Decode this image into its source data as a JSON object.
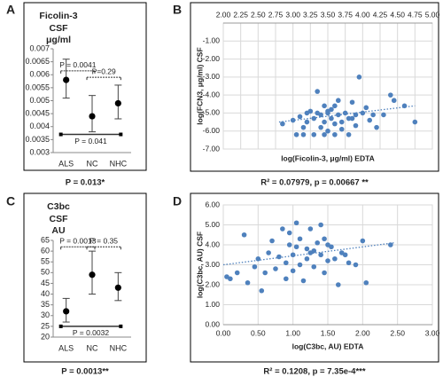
{
  "chart_data": [
    {
      "type": "errorbar",
      "panel_label": "A",
      "title_lines": [
        "Ficolin-3",
        "CSF",
        "μg/ml"
      ],
      "categories": [
        "ALS",
        "NC",
        "NHC"
      ],
      "values": [
        0.0058,
        0.0044,
        0.0049
      ],
      "low": [
        0.0051,
        0.0038,
        0.0043
      ],
      "high": [
        0.0066,
        0.0052,
        0.0056
      ],
      "color": "#000000",
      "ylim": [
        0.003,
        0.007
      ],
      "yticks": [
        0.003,
        0.0035,
        0.004,
        0.0045,
        0.005,
        0.0055,
        0.006,
        0.0065,
        0.007
      ],
      "annotations": [
        {
          "text": "P = 0.0041",
          "x": [
            0,
            1
          ],
          "y": 0.00615
        },
        {
          "text": "P=0.29",
          "x": [
            1,
            2
          ],
          "y": 0.0059
        },
        {
          "text": "P = 0.041",
          "x": [
            0,
            2
          ],
          "y": 0.0037
        }
      ],
      "caption": "P = 0.013*"
    },
    {
      "type": "scatter",
      "panel_label": "B",
      "xlabel": "log(Ficolin-3, μg/ml) EDTA",
      "ylabel": "log(FCN3, μg/ml) CSF",
      "color": "#4f81bd",
      "grid": true,
      "x_axis_position": "top",
      "x": [
        2.85,
        3.0,
        3.05,
        3.1,
        3.15,
        3.2,
        3.2,
        3.25,
        3.3,
        3.3,
        3.35,
        3.4,
        3.4,
        3.45,
        3.45,
        3.5,
        3.5,
        3.55,
        3.55,
        3.6,
        3.6,
        3.65,
        3.65,
        3.7,
        3.7,
        3.75,
        3.8,
        3.8,
        3.85,
        3.9,
        3.9,
        3.95,
        4.0,
        4.05,
        4.1,
        4.15,
        4.2,
        4.3,
        4.4,
        4.45,
        4.6,
        4.75,
        3.35,
        3.5,
        3.85,
        3.15,
        3.6,
        3.45
      ],
      "y": [
        -5.6,
        -5.4,
        -6.2,
        -5.2,
        -6.2,
        -5.0,
        -5.5,
        -4.9,
        -5.3,
        -6.2,
        -3.8,
        -5.1,
        -5.8,
        -4.6,
        -5.5,
        -5.0,
        -6.0,
        -4.8,
        -5.3,
        -5.6,
        -6.2,
        -4.3,
        -5.1,
        -5.5,
        -5.9,
        -5.0,
        -5.3,
        -6.2,
        -4.4,
        -5.1,
        -5.7,
        -3.0,
        -5.0,
        -4.7,
        -5.4,
        -5.1,
        -5.8,
        -5.1,
        -4.0,
        -4.3,
        -4.6,
        -5.5,
        -5.0,
        -4.9,
        -5.3,
        -5.8,
        -4.6,
        -6.2
      ],
      "trendline": {
        "x": [
          2.8,
          4.75
        ],
        "y": [
          -5.5,
          -4.6
        ]
      },
      "xlim": [
        2,
        5
      ],
      "xticks": [
        {
          "value": 2,
          "label": "2.00"
        },
        {
          "value": 2.25,
          "label": "2.25"
        },
        {
          "value": 2.5,
          "label": "2.50"
        },
        {
          "value": 2.75,
          "label": "2.75"
        },
        {
          "value": 3,
          "label": "3.00"
        },
        {
          "value": 3.25,
          "label": "3.25"
        },
        {
          "value": 3.5,
          "label": "3.50"
        },
        {
          "value": 3.75,
          "label": "3.75"
        },
        {
          "value": 4,
          "label": "4.00"
        },
        {
          "value": 4.25,
          "label": "4.25"
        },
        {
          "value": 4.5,
          "label": "4.50"
        },
        {
          "value": 4.75,
          "label": "4.75"
        },
        {
          "value": 5,
          "label": "5.00"
        }
      ],
      "ylim": [
        -7,
        0
      ],
      "yticks": [
        {
          "value": -1,
          "label": "-1.00"
        },
        {
          "value": -2,
          "label": "-2.00"
        },
        {
          "value": -3,
          "label": "-3.00"
        },
        {
          "value": -4,
          "label": "-4.00"
        },
        {
          "value": -5,
          "label": "-5.00"
        },
        {
          "value": -6,
          "label": "-6.00"
        },
        {
          "value": -7,
          "label": "-7.00"
        }
      ],
      "caption": "R² = 0.07979, p = 0.00667 **"
    },
    {
      "type": "errorbar",
      "panel_label": "C",
      "title_lines": [
        "C3bc",
        "CSF",
        "AU"
      ],
      "categories": [
        "ALS",
        "NC",
        "NHC"
      ],
      "values": [
        32,
        49,
        43
      ],
      "low": [
        27,
        40,
        37
      ],
      "high": [
        38,
        60,
        50
      ],
      "color": "#000000",
      "ylim": [
        20,
        65
      ],
      "yticks": [
        20,
        25,
        30,
        35,
        40,
        45,
        50,
        55,
        60,
        65
      ],
      "annotations": [
        {
          "text": "P = 0.0013",
          "x": [
            0,
            1
          ],
          "y": 62
        },
        {
          "text": "P = 0.35",
          "x": [
            1,
            2
          ],
          "y": 62
        },
        {
          "text": "P = 0.0032",
          "x": [
            0,
            2
          ],
          "y": 25
        }
      ],
      "caption": "P = 0.0013**"
    },
    {
      "type": "scatter",
      "panel_label": "D",
      "xlabel": "log(C3bc, AU) EDTA",
      "ylabel": "log(C3bc, AU) CSF",
      "color": "#4f81bd",
      "grid": true,
      "x_axis_position": "bottom",
      "x": [
        0.05,
        0.1,
        0.2,
        0.3,
        0.35,
        0.45,
        0.5,
        0.55,
        0.6,
        0.65,
        0.7,
        0.75,
        0.8,
        0.85,
        0.9,
        0.9,
        0.95,
        1.0,
        1.0,
        1.05,
        1.1,
        1.1,
        1.15,
        1.2,
        1.2,
        1.25,
        1.3,
        1.3,
        1.35,
        1.4,
        1.4,
        1.45,
        1.5,
        1.5,
        1.55,
        1.6,
        1.65,
        1.7,
        1.75,
        1.8,
        1.9,
        2.0,
        2.05,
        2.4,
        1.05,
        1.25,
        0.95,
        1.45
      ],
      "y": [
        2.4,
        2.3,
        2.6,
        4.5,
        2.1,
        2.9,
        3.3,
        1.7,
        2.6,
        3.6,
        4.2,
        2.8,
        3.4,
        4.8,
        3.1,
        2.3,
        4.0,
        3.5,
        2.7,
        5.1,
        4.3,
        3.0,
        2.2,
        3.8,
        3.3,
        4.8,
        2.9,
        3.7,
        4.1,
        5.0,
        3.5,
        2.6,
        4.0,
        3.2,
        3.9,
        3.3,
        2.0,
        3.6,
        3.5,
        3.1,
        3.0,
        4.2,
        2.1,
        4.0,
        3.9,
        3.6,
        4.6,
        4.3
      ],
      "trendline": {
        "x": [
          0,
          2.45
        ],
        "y": [
          3.0,
          4.1
        ]
      },
      "xlim": [
        0,
        3
      ],
      "xticks": [
        {
          "value": 0,
          "label": "0.00"
        },
        {
          "value": 0.5,
          "label": "0.50"
        },
        {
          "value": 1,
          "label": "1.00"
        },
        {
          "value": 1.5,
          "label": "1.50"
        },
        {
          "value": 2,
          "label": "2.00"
        },
        {
          "value": 2.5,
          "label": "2.50"
        },
        {
          "value": 3,
          "label": "3.00"
        }
      ],
      "ylim": [
        0,
        6
      ],
      "yticks": [
        {
          "value": 0,
          "label": "0.00"
        },
        {
          "value": 1,
          "label": "1.00"
        },
        {
          "value": 2,
          "label": "2.00"
        },
        {
          "value": 3,
          "label": "3.00"
        },
        {
          "value": 4,
          "label": "4.00"
        },
        {
          "value": 5,
          "label": "5.00"
        },
        {
          "value": 6,
          "label": "6.00"
        }
      ],
      "caption": "R² = 0.1208, p = 7.35e-4***"
    }
  ]
}
